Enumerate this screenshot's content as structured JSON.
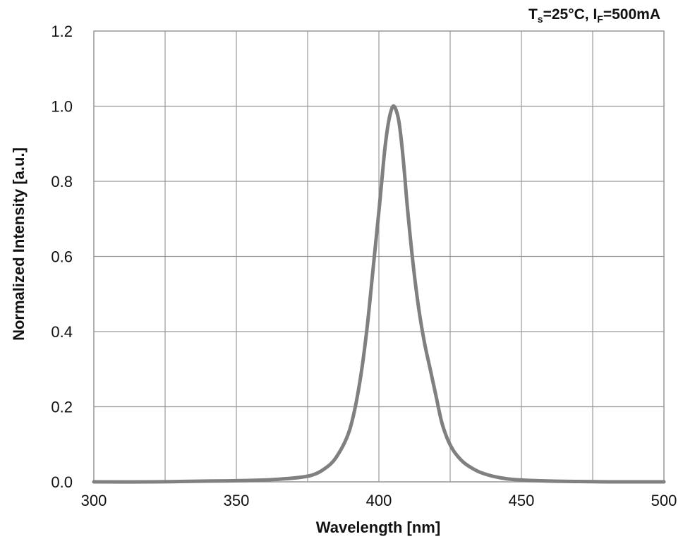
{
  "chart_data": {
    "type": "line",
    "condition": {
      "t_symbol": "T",
      "t_sub": "s",
      "t_value": "=25°C, ",
      "i_symbol": "I",
      "i_sub": "F",
      "i_value": "=500mA"
    },
    "xlabel": "Wavelength [nm]",
    "ylabel": "Normalized Intensity [a.u.]",
    "xlim": [
      300,
      500
    ],
    "ylim": [
      0.0,
      1.2
    ],
    "xticks": [
      300,
      350,
      400,
      450,
      500
    ],
    "xtick_labels": [
      "300",
      "350",
      "400",
      "450",
      "500"
    ],
    "yticks": [
      0.0,
      0.2,
      0.4,
      0.6,
      0.8,
      1.0,
      1.2
    ],
    "ytick_labels": [
      "0.0",
      "0.2",
      "0.4",
      "0.6",
      "0.8",
      "1.0",
      "1.2"
    ],
    "vertical_grid_x": [
      300,
      325,
      350,
      375,
      400,
      425,
      450,
      475,
      500
    ],
    "grid": true,
    "line_color": "#808080",
    "series": [
      {
        "x": [
          300,
          320,
          340,
          350,
          360,
          365,
          370,
          375,
          378,
          380,
          383,
          385,
          388,
          390,
          392,
          394,
          396,
          398,
          400,
          401,
          402,
          403,
          404,
          405,
          406,
          407,
          408,
          409,
          410,
          412,
          414,
          416,
          418,
          420,
          422,
          424,
          426,
          428,
          430,
          433,
          436,
          440,
          445,
          450,
          460,
          470,
          480,
          490,
          500
        ],
        "y": [
          0.0,
          0.0,
          0.002,
          0.003,
          0.005,
          0.007,
          0.01,
          0.015,
          0.022,
          0.03,
          0.047,
          0.065,
          0.105,
          0.145,
          0.21,
          0.3,
          0.42,
          0.57,
          0.72,
          0.8,
          0.88,
          0.94,
          0.98,
          1.0,
          0.99,
          0.96,
          0.9,
          0.82,
          0.73,
          0.58,
          0.46,
          0.37,
          0.3,
          0.23,
          0.16,
          0.115,
          0.085,
          0.065,
          0.05,
          0.035,
          0.024,
          0.015,
          0.008,
          0.005,
          0.002,
          0.001,
          0.0,
          0.0,
          0.0
        ]
      }
    ]
  }
}
